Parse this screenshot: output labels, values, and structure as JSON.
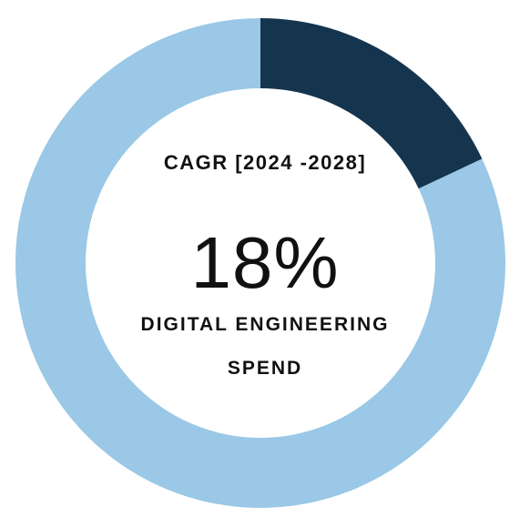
{
  "colors": {
    "highlight": "#15354f",
    "remainder": "#9ac8e6",
    "text": "#111111",
    "background": "#ffffff"
  },
  "chart_data": {
    "type": "pie",
    "variant": "donut",
    "start_angle_deg": 0,
    "direction": "clockwise",
    "slices": [
      {
        "label": "",
        "value": 18,
        "color": "#15354f"
      },
      {
        "label": "",
        "value": 82,
        "color": "#9ac8e6"
      }
    ],
    "center": {
      "header": "CAGR [2024 -2028]",
      "value_text": "18%",
      "label_line1": "DIGITAL ENGINEERING",
      "label_line2": "SPEND"
    }
  }
}
